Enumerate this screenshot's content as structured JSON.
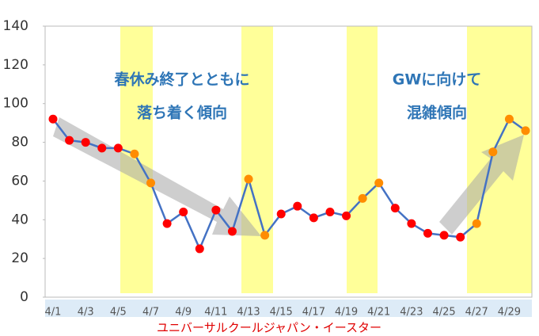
{
  "chart_data": {
    "type": "line",
    "x_label": "ユニバーサルクールジャパン・イースター",
    "categories": [
      "4/1",
      null,
      "4/3",
      null,
      "4/5",
      null,
      "4/7",
      null,
      "4/9",
      null,
      "4/11",
      null,
      "4/13",
      null,
      "4/15",
      null,
      "4/17",
      null,
      "4/19",
      null,
      "4/21",
      null,
      "4/23",
      null,
      "4/25",
      null,
      "4/27",
      null,
      "4/29",
      null
    ],
    "series": [
      {
        "color": "#4472c4",
        "values": [
          92,
          81,
          80,
          77,
          77,
          74,
          59,
          38,
          44,
          25,
          45,
          34,
          61,
          32,
          43,
          47,
          41,
          44,
          42,
          51,
          59,
          46,
          38,
          33,
          32,
          31,
          38,
          75,
          92,
          86
        ],
        "marker_colors": [
          "#ff0000",
          "#ff0000",
          "#ff0000",
          "#ff0000",
          "#ff0000",
          "#ff8c00",
          "#ff8c00",
          "#ff0000",
          "#ff0000",
          "#ff0000",
          "#ff0000",
          "#ff0000",
          "#ff8c00",
          "#ff8c00",
          "#ff0000",
          "#ff0000",
          "#ff0000",
          "#ff0000",
          "#ff0000",
          "#ff8c00",
          "#ff8c00",
          "#ff0000",
          "#ff0000",
          "#ff0000",
          "#ff0000",
          "#ff0000",
          "#ff8c00",
          "#ff8c00",
          "#ff8c00",
          "#ff8c00"
        ]
      }
    ],
    "ylim": [
      0,
      140
    ],
    "yticks": [
      0,
      20,
      40,
      60,
      80,
      100,
      120,
      140
    ],
    "annotations": [
      "春休み終了とともに",
      "落ち着く傾向",
      "GWに向けて",
      "混雑傾向"
    ]
  }
}
